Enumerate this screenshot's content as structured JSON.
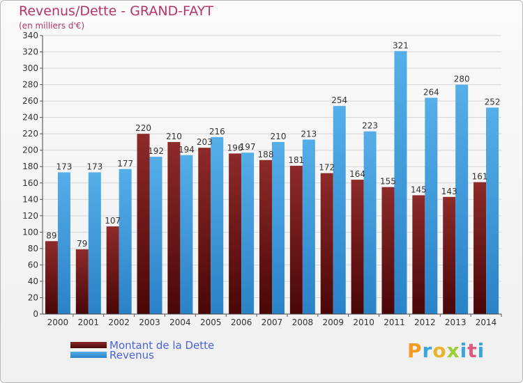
{
  "header": {
    "title": "Revenus/Dette - GRAND-FAYT",
    "subtitle": "(en milliers d'€)"
  },
  "logo": {
    "text": "Proxiti",
    "colors": [
      "#f39c1f",
      "#3aa6dd",
      "#e8b62c",
      "#9bcf3a",
      "#3aa6dd",
      "#e05a7b",
      "#3aa6dd"
    ]
  },
  "chart_data": {
    "type": "bar",
    "categories": [
      "2000",
      "2001",
      "2002",
      "2003",
      "2004",
      "2005",
      "2006",
      "2007",
      "2008",
      "2009",
      "2010",
      "2011",
      "2012",
      "2013",
      "2014"
    ],
    "series": [
      {
        "name": "Montant de la Dette",
        "color": "#8b1a1a",
        "values": [
          89,
          79,
          107,
          220,
          210,
          203,
          196,
          188,
          181,
          172,
          164,
          155,
          145,
          143,
          161
        ]
      },
      {
        "name": "Revenus",
        "color": "#3a9be0",
        "values": [
          173,
          173,
          177,
          192,
          194,
          216,
          197,
          210,
          213,
          254,
          223,
          321,
          264,
          280,
          252
        ]
      }
    ],
    "ylim": [
      0,
      340
    ],
    "yticks": [
      0,
      20,
      40,
      60,
      80,
      100,
      120,
      140,
      160,
      180,
      200,
      220,
      240,
      260,
      280,
      300,
      320,
      340
    ],
    "grid": true,
    "legend": "bottom-left"
  }
}
